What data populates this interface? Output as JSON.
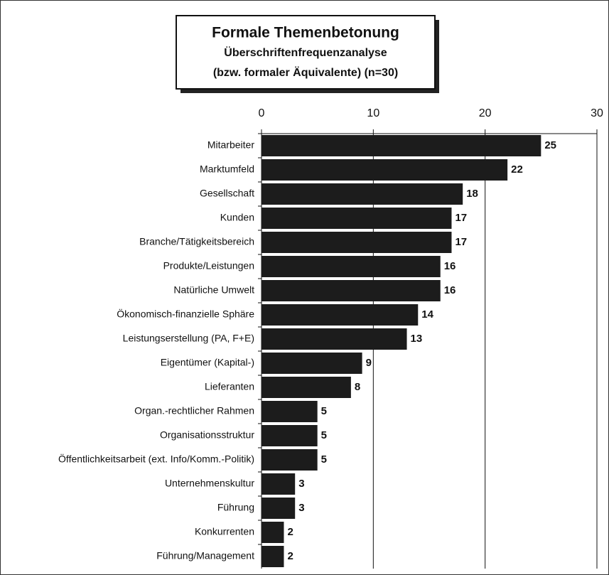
{
  "chart_data": {
    "type": "bar",
    "orientation": "horizontal",
    "title": "Formale Themenbetonung",
    "subtitle": [
      "Überschriftenfrequenzanalyse",
      "(bzw. formaler Äquivalente) (n=30)"
    ],
    "categories": [
      "Mitarbeiter",
      "Marktumfeld",
      "Gesellschaft",
      "Kunden",
      "Branche/Tätigkeitsbereich",
      "Produkte/Leistungen",
      "Natürliche Umwelt",
      "Ökonomisch-finanzielle Sphäre",
      "Leistungserstellung (PA, F+E)",
      "Eigentümer (Kapital-)",
      "Lieferanten",
      "Organ.-rechtlicher Rahmen",
      "Organisationsstruktur",
      "Öffentlichkeitsarbeit (ext. Info/Komm.-Politik)",
      "Unternehmenskultur",
      "Führung",
      "Konkurrenten",
      "Führung/Management"
    ],
    "values": [
      25,
      22,
      18,
      17,
      17,
      16,
      16,
      14,
      13,
      9,
      8,
      5,
      5,
      5,
      3,
      3,
      2,
      2
    ],
    "color": "#1c1c1c",
    "xlim": [
      0,
      30
    ],
    "xticks": [
      0,
      10,
      20,
      30
    ],
    "grid": true
  }
}
